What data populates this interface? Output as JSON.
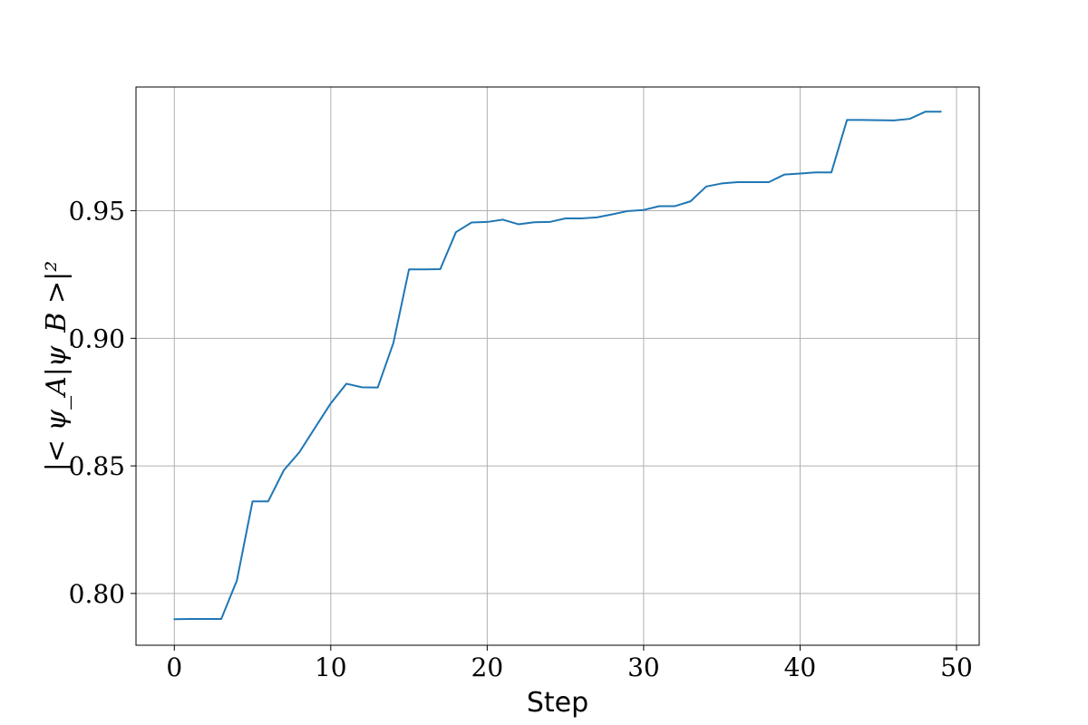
{
  "chart_data": {
    "type": "line",
    "title": "",
    "xlabel": "Step",
    "ylabel": "|< ψ_A|ψ_B >|²",
    "xlim": [
      -2.45,
      51.45
    ],
    "ylim": [
      0.7797,
      0.9985
    ],
    "xticks": [
      0,
      10,
      20,
      30,
      40,
      50
    ],
    "xtick_labels": [
      "0",
      "10",
      "20",
      "30",
      "40",
      "50"
    ],
    "yticks": [
      0.8,
      0.85,
      0.9,
      0.95
    ],
    "ytick_labels": [
      "0.80",
      "0.85",
      "0.90",
      "0.95"
    ],
    "grid": true,
    "legend": "none",
    "colors": {
      "series": "#1f77b4",
      "grid": "#b0b0b0",
      "axes": "#000000"
    },
    "series": [
      {
        "x": [
          0,
          1,
          2,
          3,
          4,
          5,
          6,
          7,
          8,
          9,
          10,
          11,
          12,
          13,
          14,
          15,
          16,
          17,
          18,
          19,
          20,
          21,
          22,
          23,
          24,
          25,
          26,
          27,
          28,
          29,
          30,
          31,
          32,
          33,
          34,
          35,
          36,
          37,
          38,
          39,
          40,
          41,
          42,
          43,
          44,
          45,
          46,
          47,
          48,
          49
        ],
        "values": [
          0.7899,
          0.79,
          0.79,
          0.79,
          0.8051,
          0.8361,
          0.8361,
          0.8483,
          0.8554,
          0.865,
          0.8745,
          0.8822,
          0.8808,
          0.8807,
          0.8981,
          0.927,
          0.927,
          0.9271,
          0.9416,
          0.9454,
          0.9456,
          0.9465,
          0.9447,
          0.9455,
          0.9456,
          0.947,
          0.947,
          0.9474,
          0.9486,
          0.9499,
          0.9503,
          0.9518,
          0.9518,
          0.9537,
          0.9595,
          0.9607,
          0.9612,
          0.9612,
          0.9612,
          0.9642,
          0.9646,
          0.965,
          0.965,
          0.9856,
          0.9856,
          0.9855,
          0.9854,
          0.986,
          0.9888,
          0.9888
        ]
      }
    ]
  }
}
